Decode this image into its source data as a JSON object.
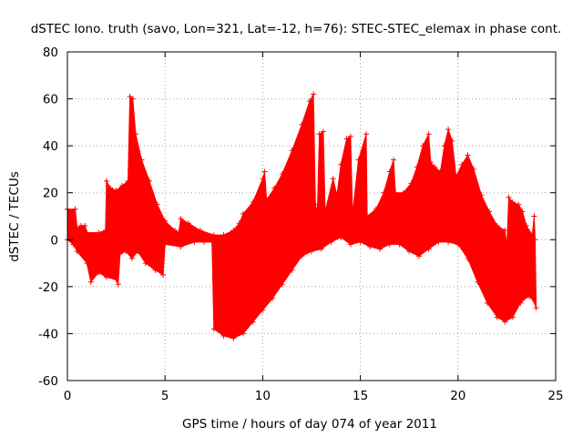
{
  "chart_data": {
    "type": "line",
    "title": "dSTEC Iono. truth (savo, Lon=321, Lat=-12, h=76): STEC-STEC_elemax in phase cont.",
    "xlabel": "GPS time / hours of day 074 of year 2011",
    "ylabel": "dSTEC  / TECUs",
    "xlim": [
      0,
      25
    ],
    "ylim": [
      -60,
      80
    ],
    "x_ticks": [
      0,
      5,
      10,
      15,
      20,
      25
    ],
    "y_ticks": [
      -60,
      -40,
      -20,
      0,
      20,
      40,
      60,
      80
    ],
    "grid": true,
    "colors": {
      "series": "#ff0000",
      "grid": "#a0a0a0",
      "axes": "#000000"
    },
    "marker": "plus",
    "series": [
      {
        "upper_envelope": [
          [
            0.0,
            13
          ],
          [
            0.4,
            13
          ],
          [
            0.5,
            5
          ],
          [
            0.7,
            6
          ],
          [
            0.9,
            6
          ],
          [
            1.0,
            3
          ],
          [
            1.6,
            3
          ],
          [
            1.95,
            4
          ],
          [
            2.0,
            25
          ],
          [
            2.2,
            22
          ],
          [
            2.5,
            21
          ],
          [
            2.8,
            23
          ],
          [
            3.1,
            25
          ],
          [
            3.2,
            61
          ],
          [
            3.35,
            60
          ],
          [
            3.5,
            45
          ],
          [
            3.8,
            34
          ],
          [
            4.2,
            25
          ],
          [
            4.6,
            15
          ],
          [
            5.0,
            8
          ],
          [
            5.5,
            4
          ],
          [
            5.7,
            3
          ],
          [
            5.8,
            9
          ],
          [
            6.2,
            7
          ],
          [
            6.8,
            4
          ],
          [
            7.5,
            2
          ],
          [
            8.0,
            2
          ],
          [
            8.5,
            4
          ],
          [
            8.8,
            7
          ],
          [
            9.0,
            11
          ],
          [
            9.5,
            16
          ],
          [
            10.0,
            26
          ],
          [
            10.1,
            29
          ],
          [
            10.2,
            17
          ],
          [
            10.6,
            22
          ],
          [
            11.0,
            28
          ],
          [
            11.5,
            38
          ],
          [
            12.0,
            49
          ],
          [
            12.4,
            59
          ],
          [
            12.6,
            62
          ],
          [
            12.7,
            15
          ],
          [
            12.8,
            12
          ],
          [
            12.9,
            45
          ],
          [
            13.1,
            46
          ],
          [
            13.2,
            12
          ],
          [
            13.6,
            26
          ],
          [
            13.8,
            19
          ],
          [
            14.0,
            32
          ],
          [
            14.3,
            43
          ],
          [
            14.5,
            44
          ],
          [
            14.6,
            11
          ],
          [
            14.9,
            34
          ],
          [
            15.3,
            45
          ],
          [
            15.35,
            10
          ],
          [
            15.8,
            13
          ],
          [
            16.2,
            20
          ],
          [
            16.5,
            29
          ],
          [
            16.7,
            34
          ],
          [
            16.8,
            20
          ],
          [
            17.2,
            20
          ],
          [
            17.6,
            24
          ],
          [
            17.9,
            31
          ],
          [
            18.2,
            40
          ],
          [
            18.5,
            45
          ],
          [
            18.6,
            33
          ],
          [
            18.8,
            31
          ],
          [
            19.1,
            29
          ],
          [
            19.3,
            40
          ],
          [
            19.5,
            47
          ],
          [
            19.7,
            42
          ],
          [
            19.9,
            27
          ],
          [
            20.2,
            32
          ],
          [
            20.5,
            36
          ],
          [
            20.8,
            30
          ],
          [
            21.2,
            19
          ],
          [
            21.6,
            12
          ],
          [
            22.0,
            6
          ],
          [
            22.4,
            4
          ],
          [
            22.5,
            -3
          ],
          [
            22.6,
            18
          ],
          [
            22.8,
            16
          ],
          [
            23.1,
            15
          ],
          [
            23.3,
            12
          ],
          [
            23.5,
            6
          ],
          [
            23.8,
            2
          ],
          [
            23.9,
            10
          ],
          [
            23.95,
            0
          ]
        ],
        "lower_envelope": [
          [
            0.0,
            0
          ],
          [
            0.3,
            -2
          ],
          [
            0.5,
            -5
          ],
          [
            1.0,
            -10
          ],
          [
            1.2,
            -18
          ],
          [
            1.6,
            -14
          ],
          [
            2.0,
            -16
          ],
          [
            2.5,
            -17
          ],
          [
            2.6,
            -19
          ],
          [
            2.7,
            -6
          ],
          [
            3.0,
            -5
          ],
          [
            3.3,
            -8
          ],
          [
            3.6,
            -5
          ],
          [
            4.0,
            -10
          ],
          [
            4.5,
            -13
          ],
          [
            4.9,
            -15
          ],
          [
            5.0,
            -2
          ],
          [
            5.8,
            -3
          ],
          [
            6.5,
            -1
          ],
          [
            7.0,
            -1
          ],
          [
            7.4,
            -1
          ],
          [
            7.5,
            -38
          ],
          [
            8.0,
            -41
          ],
          [
            8.5,
            -42
          ],
          [
            9.0,
            -40
          ],
          [
            9.5,
            -35
          ],
          [
            10.0,
            -30
          ],
          [
            10.5,
            -25
          ],
          [
            11.0,
            -19
          ],
          [
            11.5,
            -13
          ],
          [
            12.0,
            -7
          ],
          [
            12.5,
            -5
          ],
          [
            13.0,
            -4
          ],
          [
            13.5,
            -1
          ],
          [
            14.0,
            1
          ],
          [
            14.5,
            -2
          ],
          [
            15.0,
            -1
          ],
          [
            15.5,
            -3
          ],
          [
            16.0,
            -4
          ],
          [
            16.5,
            -2
          ],
          [
            17.0,
            -2
          ],
          [
            17.5,
            -5
          ],
          [
            18.0,
            -7
          ],
          [
            18.5,
            -4
          ],
          [
            19.0,
            -1
          ],
          [
            19.5,
            -1
          ],
          [
            20.0,
            -2
          ],
          [
            20.5,
            -8
          ],
          [
            21.0,
            -18
          ],
          [
            21.5,
            -27
          ],
          [
            22.0,
            -33
          ],
          [
            22.4,
            -35
          ],
          [
            22.8,
            -33
          ],
          [
            23.2,
            -27
          ],
          [
            23.6,
            -24
          ],
          [
            23.8,
            -25
          ],
          [
            24.0,
            -29
          ]
        ]
      }
    ]
  }
}
